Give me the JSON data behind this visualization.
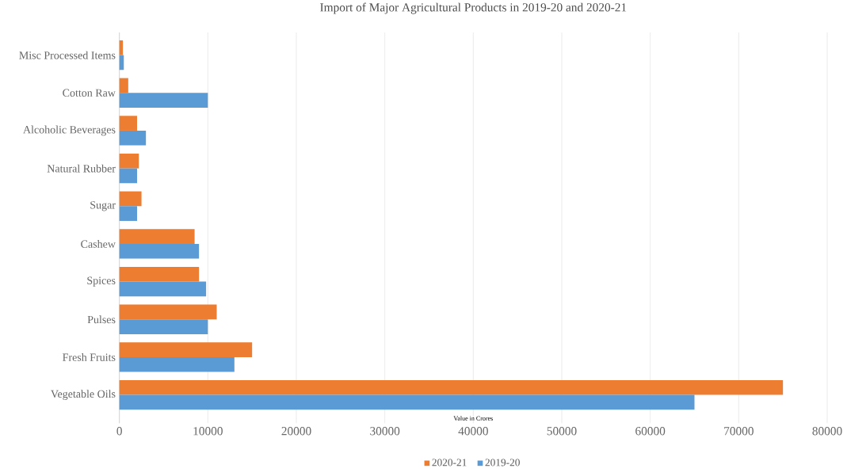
{
  "chart_data": {
    "type": "bar",
    "orientation": "horizontal",
    "title": "Import of Major Agricultural Products in 2019-20 and 2020-21",
    "xlabel": "Value in Crores",
    "categories": [
      "Misc Processed Items",
      "Cotton Raw",
      "Alcoholic Beverages",
      "Natural Rubber",
      "Sugar",
      "Cashew",
      "Spices",
      "Pulses",
      "Fresh Fruits",
      "Vegetable Oils"
    ],
    "series": [
      {
        "name": "2020-21",
        "color": "#ed7d31",
        "values": [
          400,
          1000,
          2000,
          2200,
          2500,
          8500,
          9000,
          11000,
          15000,
          75000
        ]
      },
      {
        "name": "2019-20",
        "color": "#5b9bd5",
        "values": [
          500,
          10000,
          3000,
          2000,
          2000,
          9000,
          9800,
          10000,
          13000,
          65000
        ]
      }
    ],
    "xlim": [
      0,
      80000
    ],
    "xticks": [
      0,
      10000,
      20000,
      30000,
      40000,
      50000,
      60000,
      70000,
      80000
    ],
    "grid": "x",
    "legend": "bottom"
  }
}
